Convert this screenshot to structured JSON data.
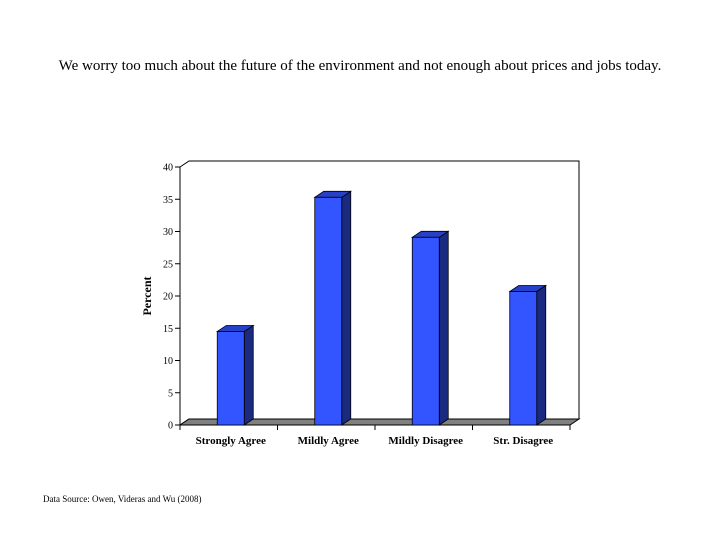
{
  "chart_data": {
    "type": "bar",
    "title": "We worry too much about the future of the environment and not enough about prices and jobs today.",
    "categories": [
      "Strongly Agree",
      "Mildly Agree",
      "Mildly Disagree",
      "Str. Disagree"
    ],
    "values": [
      14.5,
      35.3,
      29.1,
      20.7
    ],
    "ylabel": "Percent",
    "xlabel": "",
    "ylim": [
      0,
      40
    ],
    "yticks": [
      0,
      5,
      10,
      15,
      20,
      25,
      30,
      35,
      40
    ],
    "grid": false,
    "legend": "none",
    "bar_color": "#3355ff",
    "bar_side_color": "#1a2a80",
    "bar_top_color": "#2740c8",
    "wall_color": "#ffffff",
    "floor_color": "#808080"
  },
  "footer": {
    "source": "Data Source: Owen, Videras and Wu (2008)"
  }
}
